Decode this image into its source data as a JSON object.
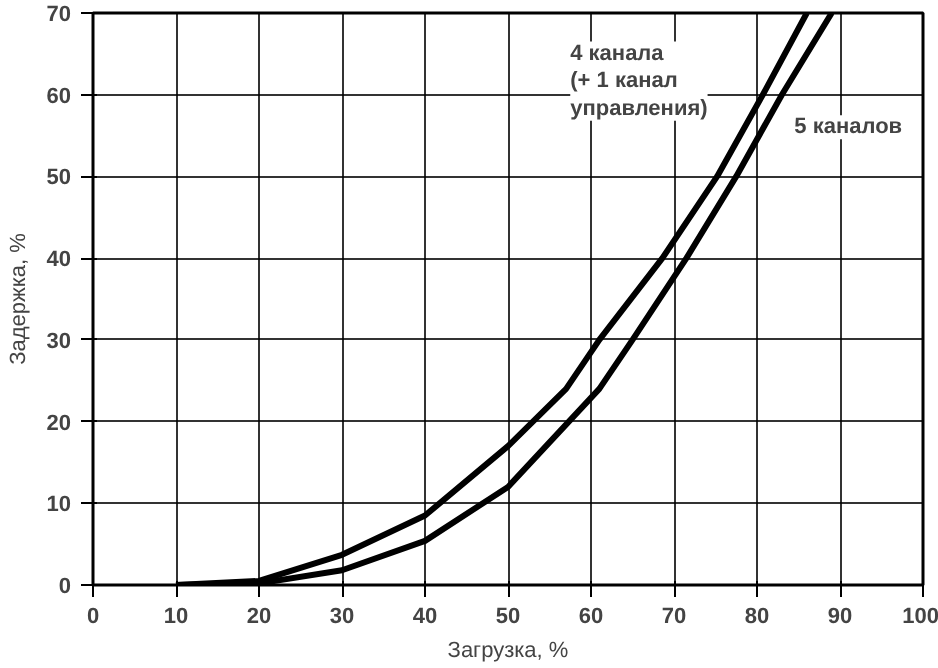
{
  "chart_data": {
    "type": "line",
    "xlabel": "Загрузка, %",
    "ylabel": "Задержка, %",
    "xlim": [
      0,
      100
    ],
    "ylim": [
      0,
      70
    ],
    "xticks": [
      0,
      10,
      20,
      30,
      40,
      50,
      60,
      70,
      80,
      90,
      100
    ],
    "yticks": [
      0,
      10,
      20,
      30,
      40,
      50,
      60,
      70
    ],
    "grid": true,
    "marker": "none",
    "line_style": "solid",
    "series": [
      {
        "color": "#000000",
        "x": [
          10,
          20,
          30,
          40,
          50,
          57,
          61,
          68.6,
          75.2,
          80.7,
          86
        ],
        "values": [
          0,
          0.5,
          3.7,
          8.5,
          17,
          24,
          30,
          40,
          50,
          60,
          70
        ]
      },
      {
        "color": "#000000",
        "x": [
          10,
          20,
          30,
          40,
          50,
          61,
          65,
          71.5,
          77.5,
          83,
          89
        ],
        "values": [
          0,
          0.2,
          1.8,
          5.4,
          12,
          24,
          30,
          40,
          50,
          60,
          70
        ]
      }
    ],
    "annotations": [
      "4 канала\n(+ 1 канал\nуправления)",
      "5 каналов"
    ]
  }
}
